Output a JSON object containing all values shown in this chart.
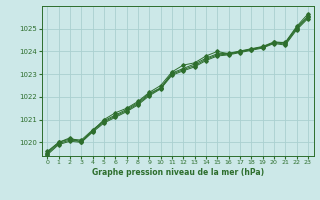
{
  "title": "Graphe pression niveau de la mer (hPa)",
  "background_color": "#cce8e8",
  "grid_color": "#aad0d0",
  "line_color": "#2d6e2d",
  "xlim": [
    -0.5,
    23.5
  ],
  "ylim": [
    1019.4,
    1026.0
  ],
  "xticks": [
    0,
    1,
    2,
    3,
    4,
    5,
    6,
    7,
    8,
    9,
    10,
    11,
    12,
    13,
    14,
    15,
    16,
    17,
    18,
    19,
    20,
    21,
    22,
    23
  ],
  "yticks": [
    1020,
    1021,
    1022,
    1023,
    1024,
    1025
  ],
  "series": [
    [
      1019.6,
      1020.0,
      1020.2,
      1020.0,
      1020.5,
      1021.0,
      1021.3,
      1021.5,
      1021.8,
      1022.2,
      1022.5,
      1023.1,
      1023.4,
      1023.5,
      1023.8,
      1024.0,
      1023.9,
      1024.0,
      1024.1,
      1024.2,
      1024.4,
      1024.4,
      1025.1,
      1025.65
    ],
    [
      1019.55,
      1020.0,
      1020.15,
      1020.1,
      1020.55,
      1020.95,
      1021.2,
      1021.45,
      1021.75,
      1022.15,
      1022.4,
      1023.05,
      1023.25,
      1023.45,
      1023.7,
      1023.9,
      1023.92,
      1024.02,
      1024.12,
      1024.22,
      1024.42,
      1024.38,
      1025.05,
      1025.55
    ],
    [
      1019.5,
      1019.95,
      1020.1,
      1020.05,
      1020.5,
      1020.9,
      1021.15,
      1021.4,
      1021.7,
      1022.1,
      1022.38,
      1023.0,
      1023.2,
      1023.38,
      1023.65,
      1023.85,
      1023.88,
      1023.98,
      1024.08,
      1024.18,
      1024.38,
      1024.33,
      1025.0,
      1025.5
    ],
    [
      1019.45,
      1019.9,
      1020.05,
      1020.0,
      1020.45,
      1020.85,
      1021.1,
      1021.35,
      1021.65,
      1022.05,
      1022.35,
      1022.95,
      1023.15,
      1023.32,
      1023.6,
      1023.8,
      1023.85,
      1023.95,
      1024.05,
      1024.15,
      1024.35,
      1024.28,
      1024.95,
      1025.45
    ]
  ]
}
